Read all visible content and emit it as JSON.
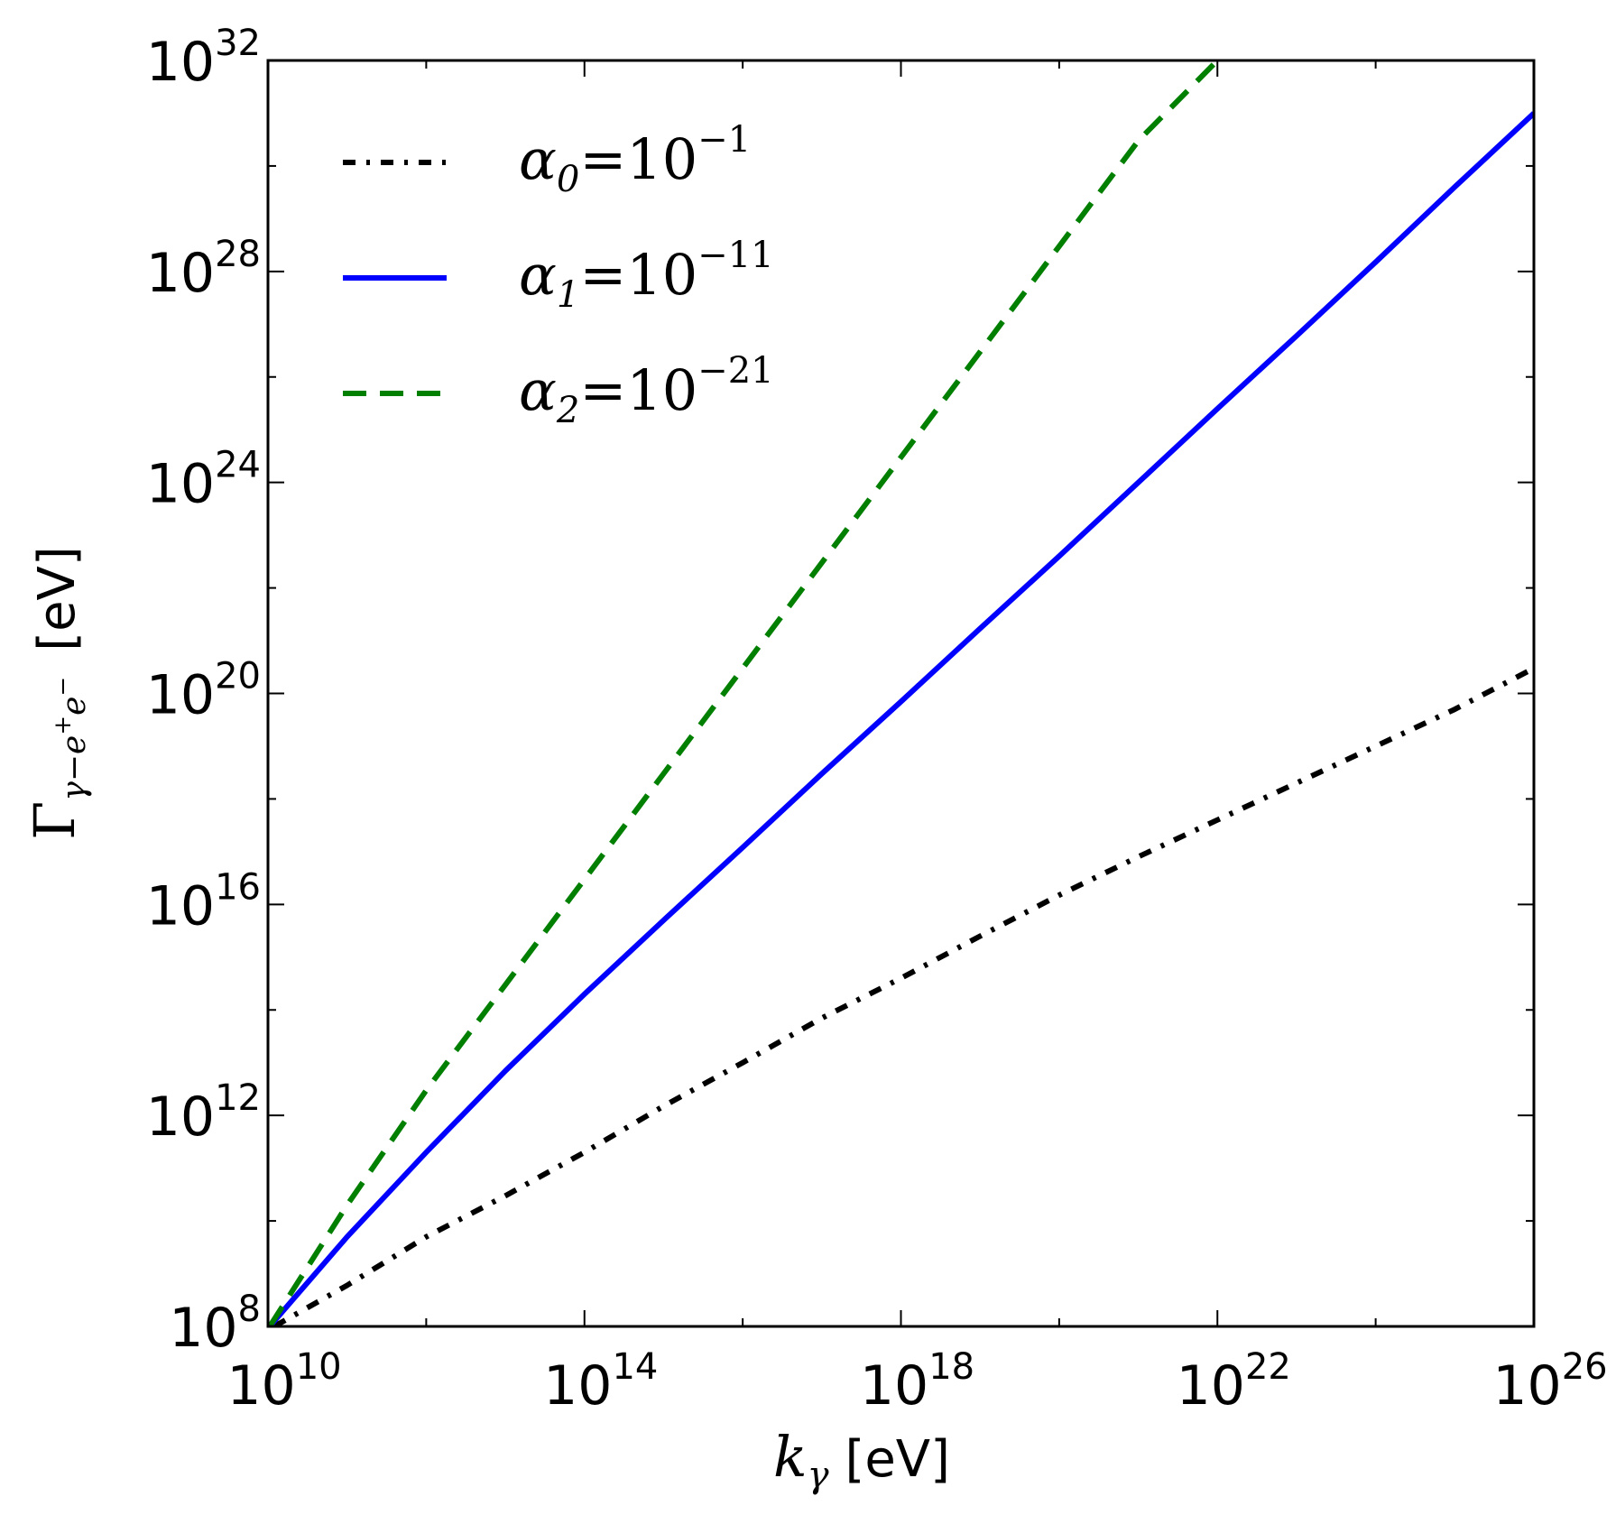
{
  "chart_data": {
    "type": "line",
    "xscale": "log",
    "yscale": "log",
    "xlim": [
      10000000000.0,
      1e+26
    ],
    "ylim": [
      100000000.0,
      1e+32
    ],
    "grid": false,
    "legend_placement": "top-left",
    "xlabel": {
      "symbol": "k",
      "subscript": "γ",
      "unit": "[eV]"
    },
    "ylabel": {
      "symbol": "Γ",
      "subscript_parts": [
        "γ−e",
        "+",
        "e",
        "−"
      ],
      "unit": "[eV]"
    },
    "x_ticks": [
      {
        "base": "10",
        "exp": "10",
        "value": 10000000000.0
      },
      {
        "base": "10",
        "exp": "14",
        "value": 100000000000000.0
      },
      {
        "base": "10",
        "exp": "18",
        "value": 1e+18
      },
      {
        "base": "10",
        "exp": "22",
        "value": 1e+22
      },
      {
        "base": "10",
        "exp": "26",
        "value": 1e+26
      }
    ],
    "y_ticks": [
      {
        "base": "10",
        "exp": "8",
        "value": 100000000.0
      },
      {
        "base": "10",
        "exp": "12",
        "value": 1000000000000.0
      },
      {
        "base": "10",
        "exp": "16",
        "value": 1e+16
      },
      {
        "base": "10",
        "exp": "20",
        "value": 1e+20
      },
      {
        "base": "10",
        "exp": "24",
        "value": 1e+24
      },
      {
        "base": "10",
        "exp": "28",
        "value": 1e+28
      },
      {
        "base": "10",
        "exp": "32",
        "value": 1e+32
      }
    ],
    "series": [
      {
        "name": "α0=10^−1",
        "label": {
          "symbol": "α",
          "sub": "0",
          "rhs": "=10",
          "exp": "−1"
        },
        "color": "#000000",
        "style": "dashdot",
        "x": [
          12000000000.0,
          100000000000.0,
          1000000000000.0,
          10000000000000.0,
          100000000000000.0,
          1000000000000000.0,
          1e+16,
          1e+17,
          1e+18,
          1e+19,
          1e+20,
          1e+21,
          1e+22,
          1e+23,
          1e+24,
          1e+25,
          1e+26
        ],
        "y": [
          100000000.0,
          600000000.0,
          5000000000.0,
          30000000000.0,
          200000000000.0,
          1500000000000.0,
          10000000000000.0,
          70000000000000.0,
          400000000000000.0,
          2500000000000000.0,
          1.5e+16,
          8e+16,
          4e+17,
          2e+18,
          1e+19,
          5e+19,
          3e+20
        ]
      },
      {
        "name": "α1=10^−11",
        "label": {
          "symbol": "α",
          "sub": "1",
          "rhs": "=10",
          "exp": "−11"
        },
        "color": "#0000ff",
        "style": "solid",
        "x": [
          10500000000.0,
          100000000000.0,
          1000000000000.0,
          10000000000000.0,
          100000000000000.0,
          1000000000000000.0,
          1e+16,
          1e+17,
          1e+18,
          1e+19,
          1e+20,
          1e+21,
          1e+22,
          1e+23,
          1e+24,
          1e+25,
          1e+26
        ],
        "y": [
          100000000.0,
          5000000000.0,
          200000000000.0,
          7000000000000.0,
          200000000000000.0,
          5000000000000000.0,
          1.2e+17,
          3e+18,
          7e+19,
          1.7e+21,
          4e+22,
          1e+24,
          2.5e+25,
          6e+26,
          1.5e+28,
          4e+29,
          1e+31
        ]
      },
      {
        "name": "α2=10^−21",
        "label": {
          "symbol": "α",
          "sub": "2",
          "rhs": "=10",
          "exp": "−21"
        },
        "color": "#007f00",
        "style": "dashed",
        "x": [
          10500000000.0,
          100000000000.0,
          1000000000000.0,
          10000000000000.0,
          100000000000000.0,
          1000000000000000.0,
          1e+16,
          1e+17,
          1e+18,
          1e+19,
          1e+20,
          1e+21,
          1e+22
        ],
        "y": [
          100000000.0,
          20000000000.0,
          3000000000000.0,
          300000000000000.0,
          3e+16,
          3e+18,
          3e+20,
          3e+22,
          3e+24,
          3e+26,
          3e+28,
          3e+30,
          1e+32
        ]
      }
    ]
  }
}
